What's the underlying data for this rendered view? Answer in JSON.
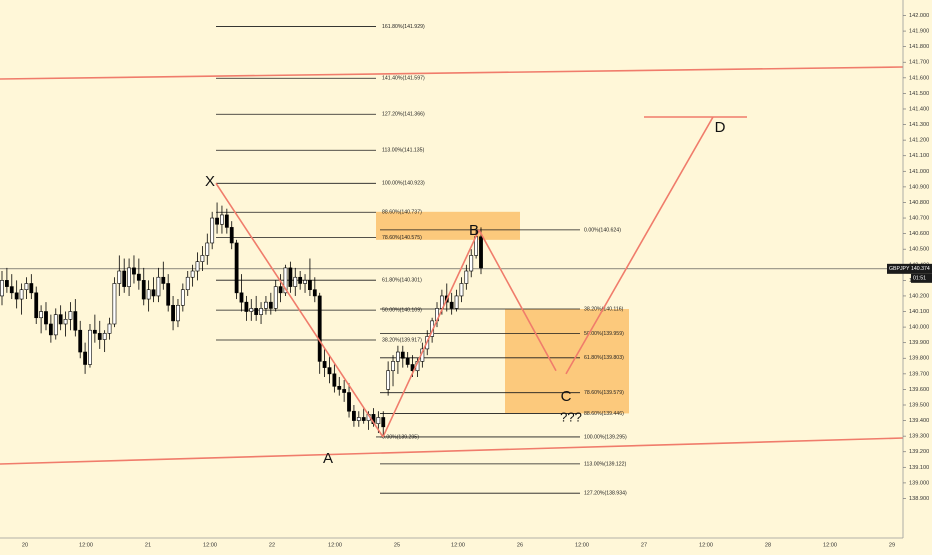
{
  "chart_data": {
    "type": "candlestick",
    "symbol_label": "GBPJPY",
    "last_price": "140.374",
    "countdown": "01:51",
    "ylim": [
      138.84,
      142.05
    ],
    "y_ticks": [
      "138.900",
      "139.000",
      "139.100",
      "139.200",
      "139.300",
      "139.400",
      "139.500",
      "139.600",
      "139.700",
      "139.800",
      "139.900",
      "140.000",
      "140.100",
      "140.200",
      "140.300",
      "140.400",
      "140.500",
      "140.600",
      "140.700",
      "140.800",
      "140.900",
      "141.000",
      "141.100",
      "141.200",
      "141.300",
      "141.400",
      "141.500",
      "141.600",
      "141.700",
      "141.800",
      "141.900",
      "142.000"
    ],
    "x_ticks": [
      "20",
      "12:00",
      "21",
      "12:00",
      "22",
      "12:00",
      "25",
      "12:00",
      "26",
      "12:00",
      "27",
      "12:00",
      "28",
      "12:00",
      "29"
    ],
    "pattern_points": [
      {
        "label": "X",
        "price": 140.923
      },
      {
        "label": "A",
        "price": 139.295
      },
      {
        "label": "B",
        "price": 140.624
      },
      {
        "label": "C",
        "price": 139.72
      },
      {
        "label": "D",
        "price": 141.366
      }
    ],
    "c_question": "???",
    "fib_xa": [
      {
        "label": "161.80%(141.929)",
        "price": 141.929
      },
      {
        "label": "141.40%(141.597)",
        "price": 141.597
      },
      {
        "label": "127.20%(141.366)",
        "price": 141.366
      },
      {
        "label": "113.00%(141.135)",
        "price": 141.135
      },
      {
        "label": "100.00%(140.923)",
        "price": 140.923
      },
      {
        "label": "88.60%(140.737)",
        "price": 140.737
      },
      {
        "label": "78.60%(140.575)",
        "price": 140.575
      },
      {
        "label": "61.80%(140.301)",
        "price": 140.301
      },
      {
        "label": "50.00%(140.109)",
        "price": 140.109
      },
      {
        "label": "38.20%(139.917)",
        "price": 139.917
      },
      {
        "label": "0.00%(139.295)",
        "price": 139.295
      }
    ],
    "fib_ab": [
      {
        "label": "0.00%(140.624)",
        "price": 140.624
      },
      {
        "label": "38.20%(140.116)",
        "price": 140.116
      },
      {
        "label": "50.00%(139.959)",
        "price": 139.959
      },
      {
        "label": "61.80%(139.803)",
        "price": 139.803
      },
      {
        "label": "78.60%(139.579)",
        "price": 139.579
      },
      {
        "label": "88.60%(139.446)",
        "price": 139.446
      },
      {
        "label": "100.00%(139.295)",
        "price": 139.295
      },
      {
        "label": "113.00%(139.122)",
        "price": 139.122
      },
      {
        "label": "127.20%(138.934)",
        "price": 138.934
      }
    ],
    "candles": [
      [
        140.2,
        140.36,
        140.14,
        140.3
      ],
      [
        140.3,
        140.38,
        140.22,
        140.26
      ],
      [
        140.26,
        140.34,
        140.18,
        140.22
      ],
      [
        140.22,
        140.3,
        140.12,
        140.18
      ],
      [
        140.18,
        140.28,
        140.08,
        140.24
      ],
      [
        140.24,
        140.32,
        140.18,
        140.28
      ],
      [
        140.28,
        140.34,
        140.18,
        140.22
      ],
      [
        140.22,
        140.26,
        140.02,
        140.06
      ],
      [
        140.06,
        140.14,
        139.96,
        140.1
      ],
      [
        140.1,
        140.16,
        139.98,
        140.02
      ],
      [
        140.02,
        140.08,
        139.9,
        139.95
      ],
      [
        139.95,
        140.12,
        139.92,
        140.08
      ],
      [
        140.08,
        140.14,
        139.98,
        140.02
      ],
      [
        140.02,
        140.1,
        139.94,
        140.05
      ],
      [
        140.05,
        140.16,
        139.98,
        140.1
      ],
      [
        140.1,
        140.18,
        139.94,
        139.98
      ],
      [
        139.98,
        140.04,
        139.8,
        139.84
      ],
      [
        139.84,
        139.9,
        139.7,
        139.76
      ],
      [
        139.76,
        140.02,
        139.74,
        139.98
      ],
      [
        139.98,
        140.08,
        139.9,
        139.96
      ],
      [
        139.96,
        140.04,
        139.86,
        139.92
      ],
      [
        139.92,
        139.98,
        139.84,
        139.96
      ],
      [
        139.96,
        140.06,
        139.92,
        140.02
      ],
      [
        140.02,
        140.32,
        140.0,
        140.28
      ],
      [
        140.28,
        140.46,
        140.2,
        140.36
      ],
      [
        140.36,
        140.44,
        140.22,
        140.26
      ],
      [
        140.26,
        140.44,
        140.2,
        140.38
      ],
      [
        140.38,
        140.46,
        140.28,
        140.34
      ],
      [
        140.34,
        140.44,
        140.24,
        140.3
      ],
      [
        140.3,
        140.38,
        140.14,
        140.18
      ],
      [
        140.18,
        140.3,
        140.1,
        140.24
      ],
      [
        140.24,
        140.32,
        140.16,
        140.2
      ],
      [
        140.2,
        140.38,
        140.16,
        140.32
      ],
      [
        140.32,
        140.42,
        140.24,
        140.28
      ],
      [
        140.28,
        140.34,
        140.1,
        140.14
      ],
      [
        140.14,
        140.2,
        139.98,
        140.04
      ],
      [
        140.04,
        140.18,
        140.0,
        140.14
      ],
      [
        140.14,
        140.28,
        140.1,
        140.24
      ],
      [
        140.24,
        140.36,
        140.2,
        140.32
      ],
      [
        140.32,
        140.4,
        140.26,
        140.36
      ],
      [
        140.36,
        140.48,
        140.3,
        140.42
      ],
      [
        140.42,
        140.52,
        140.36,
        140.46
      ],
      [
        140.46,
        140.6,
        140.4,
        140.54
      ],
      [
        140.54,
        140.74,
        140.5,
        140.7
      ],
      [
        140.7,
        140.8,
        140.6,
        140.66
      ],
      [
        140.66,
        140.78,
        140.6,
        140.72
      ],
      [
        140.72,
        140.76,
        140.6,
        140.64
      ],
      [
        140.64,
        140.68,
        140.5,
        140.54
      ],
      [
        140.54,
        140.56,
        140.18,
        140.22
      ],
      [
        140.22,
        140.34,
        140.1,
        140.16
      ],
      [
        140.16,
        140.2,
        140.04,
        140.1
      ],
      [
        140.1,
        140.18,
        140.04,
        140.12
      ],
      [
        140.12,
        140.2,
        140.04,
        140.08
      ],
      [
        140.08,
        140.16,
        140.02,
        140.12
      ],
      [
        140.12,
        140.2,
        140.08,
        140.16
      ],
      [
        140.16,
        140.22,
        140.08,
        140.12
      ],
      [
        140.12,
        140.3,
        140.1,
        140.26
      ],
      [
        140.26,
        140.34,
        140.16,
        140.22
      ],
      [
        140.22,
        140.4,
        140.2,
        140.38
      ],
      [
        140.38,
        140.42,
        140.22,
        140.26
      ],
      [
        140.26,
        140.38,
        140.2,
        140.32
      ],
      [
        140.32,
        140.36,
        140.24,
        140.28
      ],
      [
        140.28,
        140.34,
        140.22,
        140.3
      ],
      [
        140.3,
        140.44,
        140.2,
        140.24
      ],
      [
        140.24,
        140.32,
        140.16,
        140.2
      ],
      [
        140.2,
        140.22,
        139.7,
        139.78
      ],
      [
        139.78,
        139.86,
        139.68,
        139.74
      ],
      [
        139.74,
        139.82,
        139.64,
        139.7
      ],
      [
        139.7,
        139.76,
        139.58,
        139.62
      ],
      [
        139.62,
        139.68,
        139.56,
        139.6
      ],
      [
        139.6,
        139.66,
        139.52,
        139.58
      ],
      [
        139.58,
        139.64,
        139.42,
        139.46
      ],
      [
        139.46,
        139.5,
        139.36,
        139.4
      ],
      [
        139.4,
        139.46,
        139.36,
        139.42
      ],
      [
        139.42,
        139.48,
        139.38,
        139.4
      ],
      [
        139.4,
        139.46,
        139.34,
        139.44
      ],
      [
        139.44,
        139.48,
        139.36,
        139.38
      ],
      [
        139.38,
        139.46,
        139.32,
        139.42
      ],
      [
        139.42,
        139.46,
        139.3,
        139.36
      ],
      [
        139.6,
        139.78,
        139.56,
        139.72
      ],
      [
        139.72,
        139.82,
        139.62,
        139.78
      ],
      [
        139.78,
        139.88,
        139.7,
        139.84
      ],
      [
        139.84,
        139.88,
        139.74,
        139.8
      ],
      [
        139.8,
        139.84,
        139.74,
        139.76
      ],
      [
        139.76,
        139.82,
        139.68,
        139.72
      ],
      [
        139.72,
        139.8,
        139.68,
        139.78
      ],
      [
        139.78,
        139.9,
        139.74,
        139.86
      ],
      [
        139.86,
        139.98,
        139.82,
        139.94
      ],
      [
        139.94,
        140.06,
        139.9,
        140.04
      ],
      [
        140.04,
        140.16,
        140.0,
        140.12
      ],
      [
        140.12,
        140.24,
        140.08,
        140.2
      ],
      [
        140.2,
        140.28,
        140.1,
        140.16
      ],
      [
        140.16,
        140.22,
        140.08,
        140.12
      ],
      [
        140.12,
        140.24,
        140.1,
        140.2
      ],
      [
        140.2,
        140.32,
        140.16,
        140.28
      ],
      [
        140.28,
        140.4,
        140.24,
        140.36
      ],
      [
        140.36,
        140.5,
        140.32,
        140.46
      ],
      [
        140.46,
        140.62,
        140.44,
        140.58
      ],
      [
        140.58,
        140.64,
        140.34,
        140.38
      ]
    ],
    "candle_colors": {
      "up": "#ffffff",
      "down": "#000000",
      "outline": "#000000"
    },
    "colors": {
      "pattern_line": "#f07c6b",
      "trend_line": "#f07c6b",
      "zone": "#fbc16c",
      "fib_line": "#1a1a1a",
      "axis_text": "#333333",
      "price_line": "#444444"
    }
  }
}
